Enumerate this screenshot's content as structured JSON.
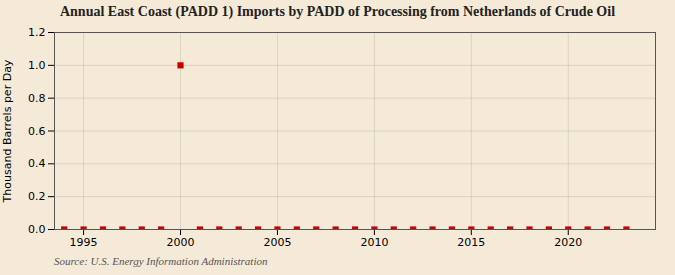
{
  "chart_data": {
    "type": "scatter",
    "title": "Annual East Coast (PADD 1) Imports by PADD of Processing from Netherlands of Crude Oil",
    "ylabel": "Thousand Barrels per Day",
    "source": "Source: U.S. Energy Information Administration",
    "x": [
      1994,
      1995,
      1996,
      1997,
      1998,
      1999,
      2000,
      2001,
      2002,
      2003,
      2004,
      2005,
      2006,
      2007,
      2008,
      2009,
      2010,
      2011,
      2012,
      2013,
      2014,
      2015,
      2016,
      2017,
      2018,
      2019,
      2020,
      2021,
      2022,
      2023
    ],
    "values": [
      0.0,
      0.0,
      0.0,
      0.0,
      0.0,
      0.0,
      1.0,
      0.0,
      0.0,
      0.0,
      0.0,
      0.0,
      0.0,
      0.0,
      0.0,
      0.0,
      0.0,
      0.0,
      0.0,
      0.0,
      0.0,
      0.0,
      0.0,
      0.0,
      0.0,
      0.0,
      0.0,
      0.0,
      0.0,
      0.0
    ],
    "color": "#cc0000",
    "marker": "square",
    "xlim": [
      1993.5,
      2024.5
    ],
    "ylim": [
      0.0,
      1.2
    ],
    "xticks": [
      1995,
      2000,
      2005,
      2010,
      2015,
      2020
    ],
    "yticks": [
      {
        "value": 0.0,
        "label": "0.0"
      },
      0.2,
      0.4,
      0.6,
      0.8,
      {
        "value": 1.0,
        "label": "1.0"
      },
      1.2
    ],
    "grid": true
  }
}
